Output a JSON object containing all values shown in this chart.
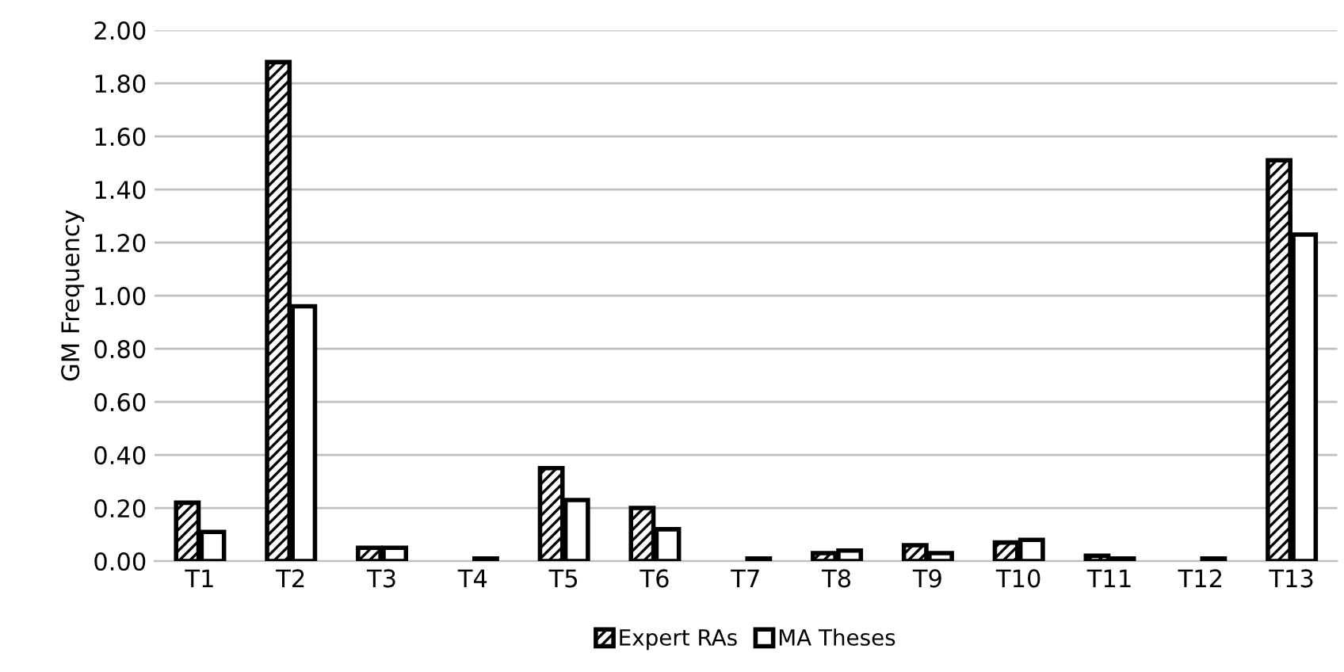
{
  "chart_data": {
    "type": "bar",
    "ylabel": "GM Frequency",
    "categories": [
      "T1",
      "T2",
      "T3",
      "T4",
      "T5",
      "T6",
      "T7",
      "T8",
      "T9",
      "T10",
      "T11",
      "T12",
      "T13"
    ],
    "series": [
      {
        "name": "Expert RAs",
        "color": "#000000",
        "values": [
          0.22,
          1.88,
          0.05,
          null,
          0.35,
          0.2,
          null,
          0.03,
          0.06,
          0.07,
          0.02,
          null,
          1.51
        ]
      },
      {
        "name": "MA Theses",
        "color": "#000000",
        "values": [
          0.11,
          0.96,
          0.05,
          0.01,
          0.23,
          0.12,
          0.01,
          0.04,
          0.03,
          0.08,
          0.01,
          0.01,
          1.23
        ]
      }
    ],
    "ylim": [
      0,
      2.0
    ],
    "yticks": [
      {
        "value": 0,
        "label": "0.00"
      },
      {
        "value": 0.2,
        "label": "0.20"
      },
      {
        "value": 0.4,
        "label": "0.40"
      },
      {
        "value": 0.6,
        "label": "0.60"
      },
      {
        "value": 0.8,
        "label": "0.80"
      },
      {
        "value": 1.0,
        "label": "1.00"
      },
      {
        "value": 1.2,
        "label": "1.20"
      },
      {
        "value": 1.4,
        "label": "1.40"
      },
      {
        "value": 1.6,
        "label": "1.60"
      },
      {
        "value": 1.8,
        "label": "1.80"
      },
      {
        "value": 2.0,
        "label": "2.00"
      }
    ],
    "grid": "y",
    "legend": "bottom"
  }
}
